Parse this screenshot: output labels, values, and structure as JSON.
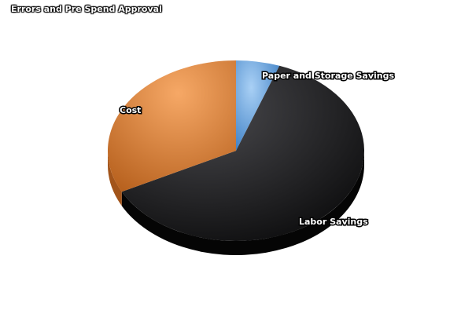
{
  "chart_data": {
    "type": "pie",
    "title": "Errors and Pre Spend Approval",
    "slices": [
      {
        "label": "Paper and Storage Savings",
        "value": 5.5,
        "color": "#5b9bd5"
      },
      {
        "label": "Labor Savings",
        "value": 62,
        "color": "#2a2a2c"
      },
      {
        "label": "Cost",
        "value": 32.5,
        "color": "#e08a3c"
      }
    ]
  }
}
